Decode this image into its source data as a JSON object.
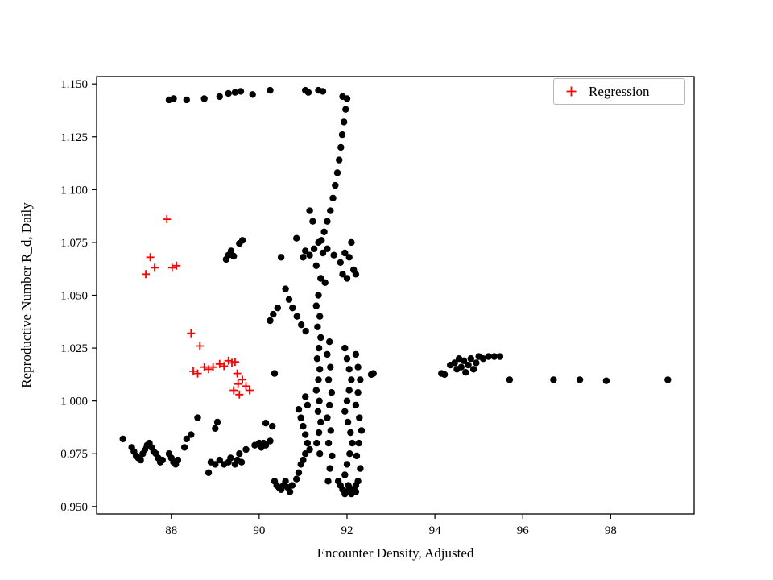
{
  "chart_data": {
    "type": "scatter",
    "title": "",
    "xlabel": "Encounter Density, Adjusted",
    "ylabel": "Reproductive Number R_d, Daily",
    "xlim": [
      86.3,
      99.9
    ],
    "ylim": [
      0.9465,
      1.1535
    ],
    "grid": false,
    "xticks": {
      "values": [
        88,
        90,
        92,
        94,
        96,
        98
      ],
      "labels": [
        "88",
        "90",
        "92",
        "94",
        "96",
        "98"
      ]
    },
    "yticks": {
      "values": [
        0.95,
        0.975,
        1.0,
        1.025,
        1.05,
        1.075,
        1.1,
        1.125,
        1.15
      ],
      "labels": [
        "0.950",
        "0.975",
        "1.000",
        "1.025",
        "1.050",
        "1.075",
        "1.100",
        "1.125",
        "1.150"
      ]
    },
    "legend": {
      "position": "upper right",
      "entries": [
        {
          "label": "Regression",
          "marker": "plus",
          "color": "#ff0000"
        }
      ]
    },
    "colors": {
      "points": "#000000",
      "regression": "#ff0000",
      "frame": "#000000"
    },
    "series": [
      {
        "name": "observations",
        "marker": "circle",
        "color": "#000000",
        "points": [
          [
            87.95,
            1.1425
          ],
          [
            88.05,
            1.143
          ],
          [
            88.35,
            1.1425
          ],
          [
            88.75,
            1.143
          ],
          [
            89.1,
            1.144
          ],
          [
            89.3,
            1.1455
          ],
          [
            89.45,
            1.146
          ],
          [
            89.58,
            1.1465
          ],
          [
            89.85,
            1.145
          ],
          [
            90.25,
            1.147
          ],
          [
            91.05,
            1.147
          ],
          [
            91.12,
            1.146
          ],
          [
            91.35,
            1.147
          ],
          [
            91.45,
            1.1465
          ],
          [
            91.9,
            1.144
          ],
          [
            92.0,
            1.143
          ],
          [
            91.97,
            1.138
          ],
          [
            91.93,
            1.132
          ],
          [
            91.89,
            1.126
          ],
          [
            91.86,
            1.12
          ],
          [
            91.82,
            1.114
          ],
          [
            91.78,
            1.108
          ],
          [
            91.73,
            1.102
          ],
          [
            91.68,
            1.096
          ],
          [
            91.62,
            1.09
          ],
          [
            91.55,
            1.085
          ],
          [
            91.48,
            1.08
          ],
          [
            91.42,
            1.076
          ],
          [
            91.15,
            1.09
          ],
          [
            91.22,
            1.085
          ],
          [
            89.25,
            1.067
          ],
          [
            89.3,
            1.069
          ],
          [
            89.36,
            1.071
          ],
          [
            89.42,
            1.0685
          ],
          [
            89.55,
            1.0745
          ],
          [
            89.62,
            1.076
          ],
          [
            90.5,
            1.068
          ],
          [
            90.85,
            1.077
          ],
          [
            91.0,
            1.068
          ],
          [
            91.05,
            1.071
          ],
          [
            91.15,
            1.069
          ],
          [
            91.25,
            1.072
          ],
          [
            91.3,
            1.064
          ],
          [
            91.35,
            1.075
          ],
          [
            91.4,
            1.058
          ],
          [
            91.45,
            1.07
          ],
          [
            91.5,
            1.056
          ],
          [
            91.55,
            1.072
          ],
          [
            91.7,
            1.069
          ],
          [
            91.85,
            1.0655
          ],
          [
            91.9,
            1.06
          ],
          [
            91.95,
            1.07
          ],
          [
            92.0,
            1.058
          ],
          [
            92.05,
            1.068
          ],
          [
            92.1,
            1.075
          ],
          [
            92.15,
            1.062
          ],
          [
            92.2,
            1.06
          ],
          [
            90.25,
            1.038
          ],
          [
            90.32,
            1.041
          ],
          [
            90.42,
            1.044
          ],
          [
            90.6,
            1.053
          ],
          [
            90.68,
            1.048
          ],
          [
            90.76,
            1.044
          ],
          [
            90.86,
            1.04
          ],
          [
            90.96,
            1.036
          ],
          [
            91.06,
            1.033
          ],
          [
            91.35,
            1.05
          ],
          [
            91.3,
            1.045
          ],
          [
            91.38,
            1.04
          ],
          [
            91.33,
            1.035
          ],
          [
            91.4,
            1.03
          ],
          [
            91.36,
            1.025
          ],
          [
            91.32,
            1.02
          ],
          [
            91.38,
            1.015
          ],
          [
            91.35,
            1.01
          ],
          [
            91.3,
            1.005
          ],
          [
            91.37,
            1.0
          ],
          [
            91.34,
            0.995
          ],
          [
            91.4,
            0.99
          ],
          [
            91.36,
            0.985
          ],
          [
            91.31,
            0.98
          ],
          [
            91.38,
            0.975
          ],
          [
            91.6,
            1.028
          ],
          [
            91.55,
            1.022
          ],
          [
            91.62,
            1.016
          ],
          [
            91.58,
            1.01
          ],
          [
            91.65,
            1.004
          ],
          [
            91.6,
            0.998
          ],
          [
            91.55,
            0.992
          ],
          [
            91.63,
            0.986
          ],
          [
            91.58,
            0.98
          ],
          [
            91.66,
            0.974
          ],
          [
            91.61,
            0.968
          ],
          [
            91.57,
            0.962
          ],
          [
            91.95,
            1.025
          ],
          [
            92.0,
            1.02
          ],
          [
            92.05,
            1.015
          ],
          [
            92.1,
            1.01
          ],
          [
            92.05,
            1.005
          ],
          [
            92.0,
            1.0
          ],
          [
            91.95,
            0.995
          ],
          [
            92.02,
            0.99
          ],
          [
            92.08,
            0.985
          ],
          [
            92.12,
            0.98
          ],
          [
            92.06,
            0.975
          ],
          [
            92.0,
            0.97
          ],
          [
            91.95,
            0.965
          ],
          [
            92.03,
            0.96
          ],
          [
            92.2,
            1.022
          ],
          [
            92.25,
            1.016
          ],
          [
            92.3,
            1.01
          ],
          [
            92.25,
            1.004
          ],
          [
            92.2,
            0.998
          ],
          [
            92.28,
            0.992
          ],
          [
            92.33,
            0.986
          ],
          [
            92.27,
            0.98
          ],
          [
            92.22,
            0.974
          ],
          [
            92.3,
            0.968
          ],
          [
            92.25,
            0.962
          ],
          [
            92.2,
            0.957
          ],
          [
            91.8,
            0.962
          ],
          [
            91.85,
            0.96
          ],
          [
            91.9,
            0.958
          ],
          [
            91.95,
            0.956
          ],
          [
            92.0,
            0.957
          ],
          [
            92.05,
            0.959
          ],
          [
            92.1,
            0.956
          ],
          [
            92.15,
            0.958
          ],
          [
            92.2,
            0.96
          ],
          [
            90.9,
            0.996
          ],
          [
            90.95,
            0.992
          ],
          [
            91.0,
            0.988
          ],
          [
            91.05,
            0.984
          ],
          [
            91.1,
            0.98
          ],
          [
            91.15,
            0.977
          ],
          [
            91.1,
            0.998
          ],
          [
            91.05,
            1.002
          ],
          [
            94.15,
            1.013
          ],
          [
            94.22,
            1.0125
          ],
          [
            94.35,
            1.017
          ],
          [
            94.45,
            1.018
          ],
          [
            94.5,
            1.015
          ],
          [
            94.55,
            1.02
          ],
          [
            94.6,
            1.016
          ],
          [
            94.66,
            1.019
          ],
          [
            94.7,
            1.0135
          ],
          [
            94.76,
            1.017
          ],
          [
            94.82,
            1.02
          ],
          [
            94.88,
            1.015
          ],
          [
            94.94,
            1.018
          ],
          [
            95.0,
            1.021
          ],
          [
            95.1,
            1.02
          ],
          [
            95.22,
            1.021
          ],
          [
            95.35,
            1.021
          ],
          [
            95.48,
            1.021
          ],
          [
            95.7,
            1.01
          ],
          [
            96.7,
            1.01
          ],
          [
            97.3,
            1.01
          ],
          [
            97.9,
            1.0095
          ],
          [
            99.3,
            1.01
          ],
          [
            90.35,
            1.013
          ],
          [
            92.55,
            1.0125
          ],
          [
            92.6,
            1.013
          ],
          [
            86.9,
            0.982
          ],
          [
            87.1,
            0.978
          ],
          [
            87.15,
            0.976
          ],
          [
            87.2,
            0.974
          ],
          [
            87.25,
            0.973
          ],
          [
            87.3,
            0.972
          ],
          [
            87.35,
            0.975
          ],
          [
            87.4,
            0.977
          ],
          [
            87.45,
            0.979
          ],
          [
            87.5,
            0.98
          ],
          [
            87.55,
            0.978
          ],
          [
            87.6,
            0.976
          ],
          [
            87.65,
            0.975
          ],
          [
            87.7,
            0.973
          ],
          [
            87.75,
            0.971
          ],
          [
            87.8,
            0.972
          ],
          [
            87.95,
            0.975
          ],
          [
            88.0,
            0.973
          ],
          [
            88.05,
            0.971
          ],
          [
            88.1,
            0.97
          ],
          [
            88.15,
            0.972
          ],
          [
            88.3,
            0.978
          ],
          [
            88.35,
            0.982
          ],
          [
            88.45,
            0.984
          ],
          [
            88.85,
            0.966
          ],
          [
            88.9,
            0.971
          ],
          [
            89.0,
            0.97
          ],
          [
            89.1,
            0.972
          ],
          [
            89.2,
            0.97
          ],
          [
            89.3,
            0.971
          ],
          [
            89.35,
            0.973
          ],
          [
            89.45,
            0.97
          ],
          [
            89.5,
            0.972
          ],
          [
            89.55,
            0.975
          ],
          [
            89.6,
            0.971
          ],
          [
            89.7,
            0.977
          ],
          [
            89.9,
            0.979
          ],
          [
            90.0,
            0.98
          ],
          [
            90.05,
            0.978
          ],
          [
            90.1,
            0.98
          ],
          [
            90.15,
            0.979
          ],
          [
            89.0,
            0.987
          ],
          [
            90.25,
            0.981
          ],
          [
            90.3,
            0.988
          ],
          [
            90.35,
            0.962
          ],
          [
            90.4,
            0.96
          ],
          [
            90.45,
            0.959
          ],
          [
            90.5,
            0.958
          ],
          [
            90.55,
            0.96
          ],
          [
            90.6,
            0.962
          ],
          [
            90.65,
            0.959
          ],
          [
            90.7,
            0.957
          ],
          [
            90.75,
            0.96
          ],
          [
            90.85,
            0.963
          ],
          [
            90.9,
            0.966
          ],
          [
            90.95,
            0.97
          ],
          [
            91.0,
            0.972
          ],
          [
            91.05,
            0.975
          ],
          [
            88.6,
            0.992
          ],
          [
            89.05,
            0.99
          ],
          [
            90.15,
            0.9895
          ]
        ]
      },
      {
        "name": "Regression",
        "marker": "plus",
        "color": "#ff0000",
        "points": [
          [
            87.9,
            1.086
          ],
          [
            87.52,
            1.068
          ],
          [
            87.42,
            1.06
          ],
          [
            87.62,
            1.063
          ],
          [
            88.02,
            1.063
          ],
          [
            88.12,
            1.064
          ],
          [
            88.45,
            1.032
          ],
          [
            88.65,
            1.026
          ],
          [
            88.5,
            1.014
          ],
          [
            88.6,
            1.013
          ],
          [
            88.75,
            1.016
          ],
          [
            88.85,
            1.015
          ],
          [
            88.95,
            1.016
          ],
          [
            89.1,
            1.0175
          ],
          [
            89.2,
            1.0165
          ],
          [
            89.3,
            1.019
          ],
          [
            89.38,
            1.018
          ],
          [
            89.45,
            1.0185
          ],
          [
            89.5,
            1.013
          ],
          [
            89.52,
            1.008
          ],
          [
            89.42,
            1.005
          ],
          [
            89.55,
            1.003
          ],
          [
            89.62,
            1.01
          ],
          [
            89.7,
            1.007
          ],
          [
            89.78,
            1.005
          ]
        ]
      }
    ]
  }
}
